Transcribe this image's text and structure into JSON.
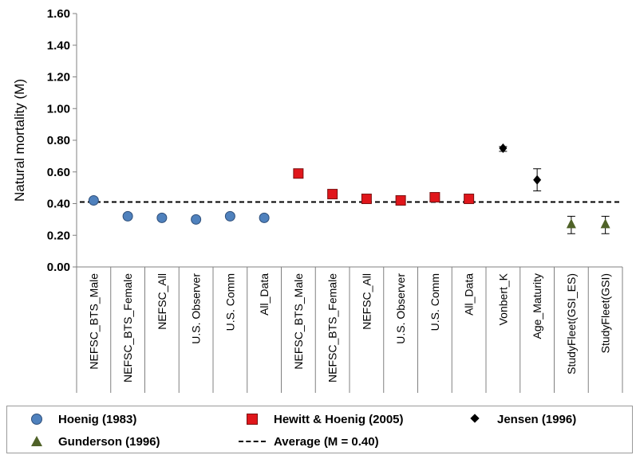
{
  "chart_data": {
    "type": "scatter",
    "ylabel": "Natural mortality (M)",
    "xlabel": "",
    "title": "",
    "ylim": [
      0,
      1.6
    ],
    "yticks": [
      "0.00",
      "0.20",
      "0.40",
      "0.60",
      "0.80",
      "1.00",
      "1.20",
      "1.40",
      "1.60"
    ],
    "grid": false,
    "legend_position": "bottom",
    "categories": [
      "NEFSC_BTS_Male",
      "NEFSC_BTS_Female",
      "NEFSC_All",
      "U.S. Observer",
      "U.S. Comm",
      "All_Data",
      "NEFSC_BTS_Male",
      "NEFSC_BTS_Female",
      "NEFSC_All",
      "U.S. Observer",
      "U.S. Comm",
      "All_Data",
      "Vonbert_K",
      "Age_Maturity",
      "StudyFleet(GSI_ES)",
      "StudyFleet(GSI)"
    ],
    "series": [
      {
        "name": "Hoenig (1983)",
        "marker": "circle",
        "color": "#4f81bd",
        "points": [
          {
            "x": 0,
            "y": 0.42
          },
          {
            "x": 1,
            "y": 0.32
          },
          {
            "x": 2,
            "y": 0.31
          },
          {
            "x": 3,
            "y": 0.3
          },
          {
            "x": 4,
            "y": 0.32
          },
          {
            "x": 5,
            "y": 0.31
          }
        ]
      },
      {
        "name": "Hewitt & Hoenig (2005)",
        "marker": "square",
        "color": "#e0161b",
        "points": [
          {
            "x": 6,
            "y": 0.59
          },
          {
            "x": 7,
            "y": 0.46
          },
          {
            "x": 8,
            "y": 0.43
          },
          {
            "x": 9,
            "y": 0.42
          },
          {
            "x": 10,
            "y": 0.44
          },
          {
            "x": 11,
            "y": 0.43
          }
        ]
      },
      {
        "name": "Jensen (1996)",
        "marker": "diamond",
        "color": "#000000",
        "points": [
          {
            "x": 12,
            "y": 0.75,
            "err_low": 0.73,
            "err_high": 0.76
          },
          {
            "x": 13,
            "y": 0.55,
            "err_low": 0.48,
            "err_high": 0.62
          }
        ]
      },
      {
        "name": "Gunderson (1996)",
        "marker": "triangle",
        "color": "#4f6228",
        "points": [
          {
            "x": 14,
            "y": 0.27,
            "err_low": 0.21,
            "err_high": 0.32
          },
          {
            "x": 15,
            "y": 0.27,
            "err_low": 0.21,
            "err_high": 0.32
          }
        ]
      }
    ],
    "reference_line": {
      "name": "Average (M = 0.40)",
      "y": 0.41,
      "style": "dashed",
      "color": "#000000"
    }
  },
  "legend": {
    "items": [
      {
        "label": "Hoenig (1983)",
        "symbol": "circle"
      },
      {
        "label": "Hewitt & Hoenig (2005)",
        "symbol": "square"
      },
      {
        "label": "Jensen (1996)",
        "symbol": "diamond"
      },
      {
        "label": "Gunderson (1996)",
        "symbol": "triangle"
      },
      {
        "label": "Average (M = 0.40)",
        "symbol": "dash"
      }
    ]
  }
}
